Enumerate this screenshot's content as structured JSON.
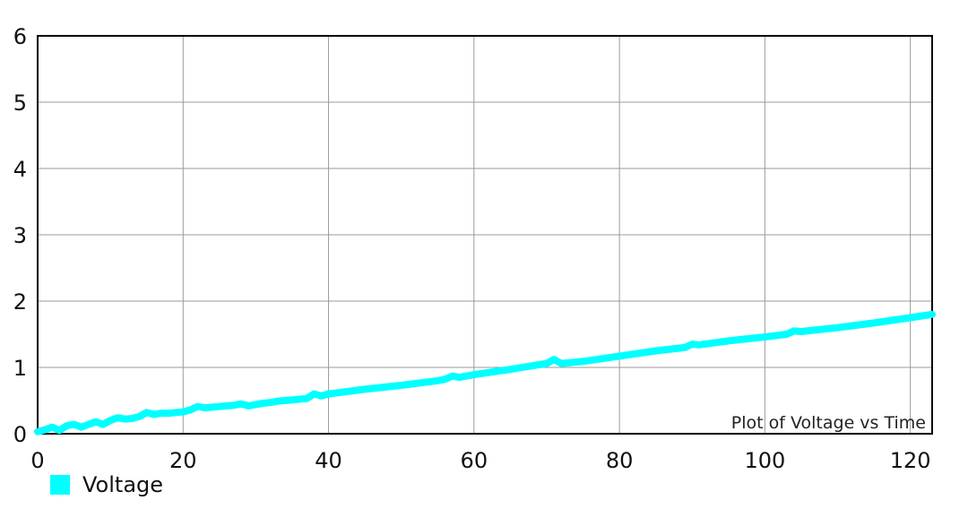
{
  "chart_data": {
    "type": "line",
    "description": "Plot of Voltage vs Time",
    "xlim": [
      0,
      123
    ],
    "ylim": [
      0,
      6
    ],
    "x_ticks": [
      "0",
      "20",
      "40",
      "60",
      "80",
      "100",
      "120"
    ],
    "y_ticks": [
      "0",
      "1",
      "2",
      "3",
      "4",
      "5",
      "6"
    ],
    "grid": true,
    "legend_position": "bottom-left",
    "series": [
      {
        "name": "Voltage",
        "color": "#00FFFF",
        "x": [
          0,
          1,
          2,
          3,
          4,
          5,
          6,
          7,
          8,
          9,
          10,
          11,
          12,
          13,
          14,
          15,
          16,
          17,
          18,
          19,
          20,
          21,
          22,
          23,
          24,
          25,
          26,
          27,
          28,
          29,
          30,
          31,
          32,
          33,
          34,
          35,
          36,
          37,
          38,
          39,
          40,
          45,
          50,
          55,
          56,
          57,
          58,
          60,
          65,
          70,
          71,
          72,
          75,
          80,
          85,
          89,
          90,
          91,
          95,
          100,
          103,
          104,
          105,
          110,
          115,
          120,
          123
        ],
        "values": [
          0.03,
          0.06,
          0.1,
          0.05,
          0.12,
          0.14,
          0.1,
          0.14,
          0.18,
          0.14,
          0.2,
          0.24,
          0.22,
          0.23,
          0.26,
          0.32,
          0.29,
          0.31,
          0.31,
          0.32,
          0.33,
          0.36,
          0.41,
          0.39,
          0.4,
          0.41,
          0.42,
          0.43,
          0.45,
          0.42,
          0.44,
          0.46,
          0.47,
          0.49,
          0.5,
          0.51,
          0.52,
          0.53,
          0.6,
          0.57,
          0.6,
          0.67,
          0.73,
          0.8,
          0.82,
          0.87,
          0.85,
          0.89,
          0.97,
          1.06,
          1.12,
          1.06,
          1.09,
          1.17,
          1.25,
          1.3,
          1.35,
          1.34,
          1.4,
          1.46,
          1.5,
          1.55,
          1.54,
          1.6,
          1.67,
          1.75,
          1.8
        ]
      }
    ]
  }
}
